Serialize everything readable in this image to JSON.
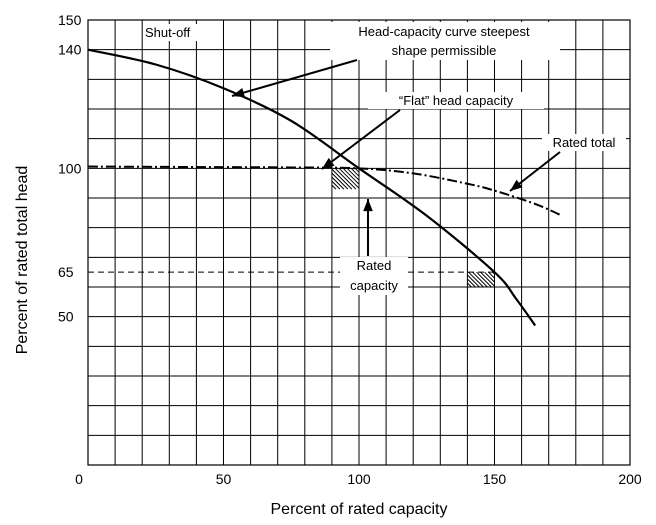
{
  "chart_data": {
    "type": "line",
    "title": "",
    "xlabel": "Percent of rated capacity",
    "ylabel": "Percent of rated total head",
    "xlim": [
      0,
      200
    ],
    "ylim": [
      0,
      150
    ],
    "x_tick_labels": [
      "0",
      "50",
      "100",
      "150",
      "200"
    ],
    "y_tick_labels": [
      "150",
      "140",
      "100",
      "65",
      "50"
    ],
    "grid": true,
    "series": [
      {
        "points": [
          [
            0,
            140
          ],
          [
            25,
            135
          ],
          [
            50,
            127
          ],
          [
            75,
            116
          ],
          [
            100,
            100
          ],
          [
            125,
            84
          ],
          [
            150,
            65
          ],
          [
            158,
            56
          ],
          [
            165,
            47
          ]
        ]
      },
      {
        "points": [
          [
            0,
            100.6
          ],
          [
            25,
            100.5
          ],
          [
            50,
            100.4
          ],
          [
            75,
            100.3
          ],
          [
            100,
            100
          ],
          [
            120,
            98.3
          ],
          [
            140,
            94.8
          ],
          [
            150,
            92.5
          ],
          [
            165,
            88
          ],
          [
            175,
            84
          ]
        ]
      }
    ],
    "reference_line": {
      "y": 65,
      "x_range": [
        0,
        150
      ]
    },
    "annotations": {
      "shutoff": "Shut-off",
      "steepest": [
        "Head-capacity curve steepest",
        "shape permissible"
      ],
      "flat": "“Flat” head capacity",
      "rated_total": "Rated total",
      "rated_capacity": [
        "Rated",
        "capacity"
      ]
    }
  }
}
